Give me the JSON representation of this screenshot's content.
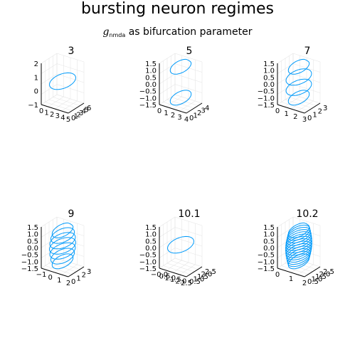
{
  "title": "bursting neuron regimes",
  "subtitle": {
    "symbol": "g",
    "symbol_subscript": "nmda",
    "text": "as bifurcation parameter"
  },
  "colors": {
    "series": "#009AFA",
    "grid": "#E6E6E6",
    "axis": "#000000"
  },
  "chart_data": [
    {
      "type": "line3d",
      "title": "3",
      "x_ticks": [
        "0",
        "1",
        "2",
        "3",
        "4",
        "5"
      ],
      "y_ticks": [
        "0",
        "1",
        "2",
        "3",
        "4",
        "5",
        "6"
      ],
      "z_ticks": [
        "2",
        "1",
        "0",
        "−1"
      ],
      "xlim": [
        0,
        5
      ],
      "ylim": [
        0,
        6
      ],
      "zlim": [
        -1.5,
        2.2
      ],
      "loops": 1
    },
    {
      "type": "line3d",
      "title": "5",
      "x_ticks": [
        "0",
        "1",
        "2",
        "3",
        "4"
      ],
      "y_ticks": [
        "0",
        "1",
        "2",
        "3",
        "4"
      ],
      "z_ticks": [
        "1.5",
        "1.0",
        "0.5",
        "0.0",
        "−0.5",
        "−1.0",
        "−1.5"
      ],
      "xlim": [
        0,
        4
      ],
      "ylim": [
        0,
        4
      ],
      "zlim": [
        -1.7,
        1.7
      ],
      "loops": 2
    },
    {
      "type": "line3d",
      "title": "7",
      "x_ticks": [
        "0",
        "1",
        "2",
        "3"
      ],
      "y_ticks": [
        "0",
        "1",
        "2",
        "3"
      ],
      "z_ticks": [
        "1.5",
        "1.0",
        "0.5",
        "0.0",
        "−0.5",
        "−1.0",
        "−1.5"
      ],
      "xlim": [
        0,
        3
      ],
      "ylim": [
        0,
        3
      ],
      "zlim": [
        -1.7,
        1.7
      ],
      "loops": 4
    },
    {
      "type": "line3d",
      "title": "9",
      "x_ticks": [
        "−1",
        "0",
        "1",
        "2"
      ],
      "y_ticks": [
        "0",
        "1",
        "2",
        "3"
      ],
      "z_ticks": [
        "1.5",
        "1.0",
        "0.5",
        "0.0",
        "−0.5",
        "−1.0",
        "−1.5"
      ],
      "xlim": [
        -1,
        2.5
      ],
      "ylim": [
        0,
        3
      ],
      "zlim": [
        -1.7,
        1.7
      ],
      "loops": 7
    },
    {
      "type": "line3d",
      "title": "10.1",
      "x_ticks": [
        "−0.0",
        "0.5",
        "1.0",
        "1.5",
        "2.0",
        "2.5"
      ],
      "y_ticks": [
        "0.5",
        "1.0",
        "1.5",
        "2.0",
        "2.5"
      ],
      "z_ticks": [
        "1.5",
        "1.0",
        "0.5",
        "0.0",
        "−0.5",
        "−1.0",
        "−1.5"
      ],
      "xlim": [
        -0.2,
        2.7
      ],
      "ylim": [
        0.3,
        2.7
      ],
      "zlim": [
        -1.7,
        1.7
      ],
      "loops": 1
    },
    {
      "type": "line3d",
      "title": "10.2",
      "x_ticks": [
        "0",
        "1",
        "2"
      ],
      "y_ticks": [
        "0.5",
        "1.0",
        "1.5",
        "2.0",
        "2.5"
      ],
      "z_ticks": [
        "1.5",
        "1.0",
        "0.5",
        "0.0",
        "−0.5",
        "−1.0",
        "−1.5"
      ],
      "xlim": [
        -0.5,
        2.5
      ],
      "ylim": [
        0.3,
        2.7
      ],
      "zlim": [
        -1.7,
        1.7
      ],
      "loops": 14
    }
  ]
}
